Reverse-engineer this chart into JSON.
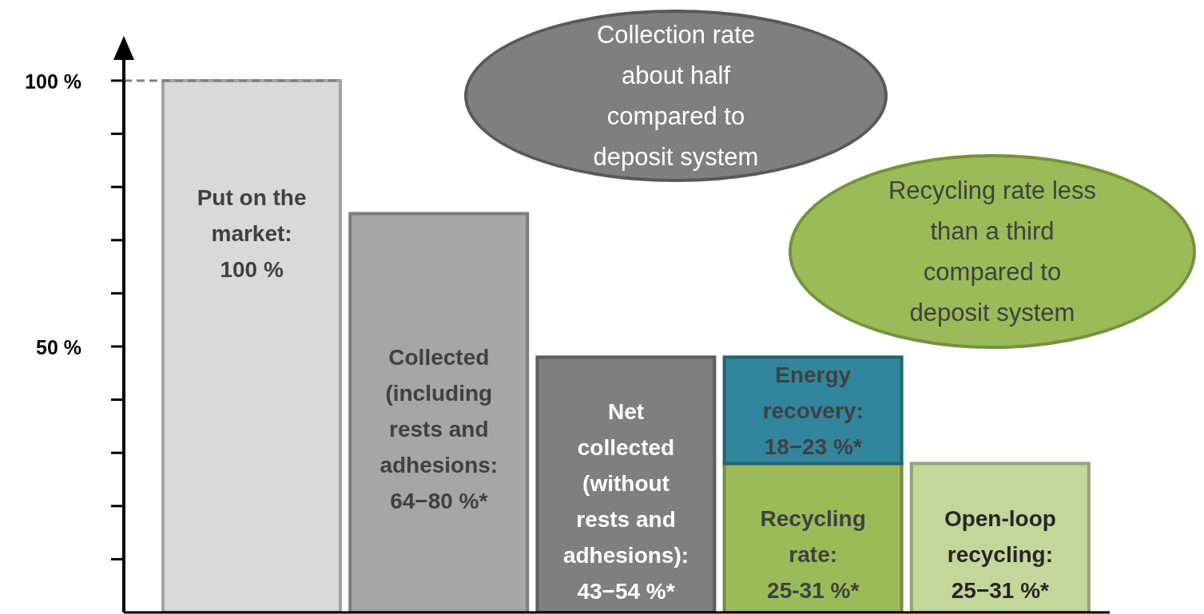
{
  "chart_data": {
    "type": "bar",
    "stacked": true,
    "categories": [
      null,
      null,
      null,
      null,
      null
    ],
    "series": [
      {
        "values": [
          100,
          75,
          48,
          28,
          28
        ],
        "colors": [
          "#d9d9d9",
          "#a6a6a6",
          "#7f7f7f",
          "#9bbb59",
          "#c4d79b"
        ]
      },
      {
        "values": [
          null,
          null,
          null,
          20,
          null
        ],
        "color": "#31859c"
      }
    ],
    "ylim": [
      0,
      106
    ],
    "yticks": [
      {
        "value": 10,
        "label": null
      },
      {
        "value": 20,
        "label": null
      },
      {
        "value": 30,
        "label": null
      },
      {
        "value": 40,
        "label": null
      },
      {
        "value": 50,
        "label": "50 %"
      },
      {
        "value": 60,
        "label": null
      },
      {
        "value": 70,
        "label": null
      },
      {
        "value": 80,
        "label": null
      },
      {
        "value": 90,
        "label": null
      },
      {
        "value": 100,
        "label": "100 %"
      }
    ],
    "tick_labels": "y",
    "grid": false,
    "legend": false,
    "ref_lines": [
      {
        "axis": "y",
        "value": 100,
        "color": "#7f7f7f",
        "line_style": "dashed"
      }
    ],
    "annotations": [
      "Put on the market: 100 %",
      "Collected (including rests and adhesions: 64−80 %*",
      "Net collected (without rests and adhesions): 43−54 %*",
      "Recycling rate: 25-31 %*",
      "Open-loop recycling: 25−31 %*",
      "Energy recovery: 18−23 %*",
      "Collection rate about half compared to deposit system",
      "Recycling rate less than a third compared to deposit system"
    ]
  }
}
